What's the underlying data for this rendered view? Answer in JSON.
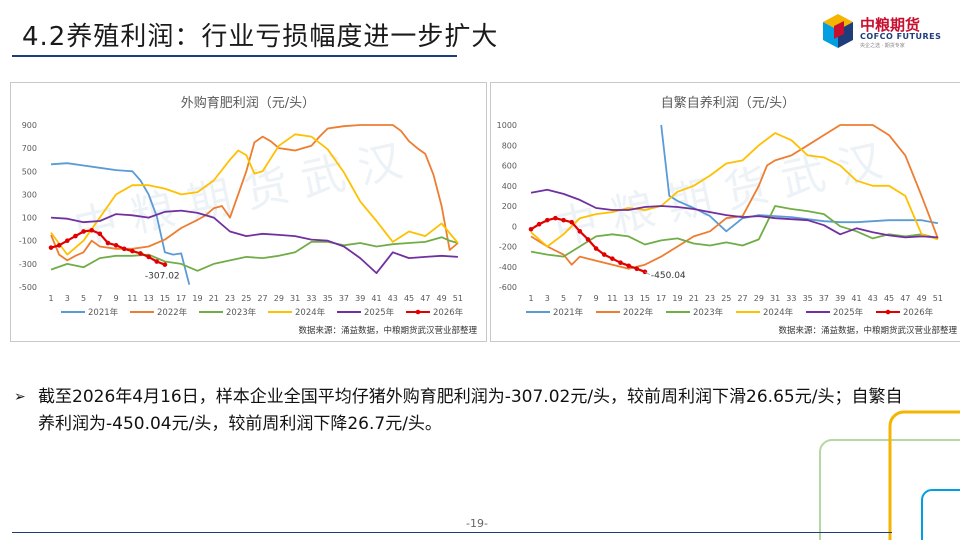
{
  "header": {
    "title": "4.2养殖利润：行业亏损幅度进一步扩大",
    "logo_cn": "中粮期货",
    "logo_en": "COFCO FUTURES",
    "logo_sub": "央企之选 · 期货专家"
  },
  "colors": {
    "2021": "#5b9bd5",
    "2022": "#ed7d31",
    "2023": "#70ad47",
    "2024": "#ffc000",
    "2025": "#7030a0",
    "2026": "#e00000",
    "title_rule": "#1f3d7a",
    "logo_red": "#c8102e"
  },
  "chart_data": [
    {
      "type": "line",
      "title": "外购育肥利润（元/头）",
      "ylim": [
        -500,
        900
      ],
      "yticks": [
        -500,
        -300,
        -100,
        100,
        300,
        500,
        700,
        900
      ],
      "x_ticks": [
        "1",
        "3",
        "5",
        "7",
        "9",
        "11",
        "13",
        "15",
        "17",
        "19",
        "21",
        "23",
        "25",
        "27",
        "29",
        "31",
        "33",
        "35",
        "37",
        "39",
        "41",
        "43",
        "45",
        "47",
        "49",
        "51"
      ],
      "xlim": [
        1,
        52
      ],
      "annotation": {
        "text": "-307.02",
        "x": 15,
        "y": -307.02
      },
      "source": "数据来源：涌益数据，中粮期货武汉营业部整理",
      "watermark": "中粮期货武汉",
      "series": [
        {
          "name": "2021年",
          "x": [
            1,
            3,
            5,
            7,
            9,
            11,
            12,
            13,
            14,
            15,
            16,
            17,
            18
          ],
          "y": [
            560,
            570,
            550,
            530,
            510,
            500,
            420,
            300,
            110,
            -200,
            -220,
            -210,
            -480
          ]
        },
        {
          "name": "2022年",
          "x": [
            1,
            2,
            3,
            4,
            5,
            6,
            7,
            9,
            11,
            13,
            15,
            17,
            19,
            20,
            21,
            22,
            23,
            24,
            25,
            26,
            27,
            28,
            29,
            30,
            31,
            33,
            34,
            35,
            36,
            37,
            39,
            41,
            42,
            43,
            44,
            45,
            46,
            47,
            48,
            49,
            50,
            51
          ],
          "y": [
            -50,
            -220,
            -270,
            -230,
            -200,
            -100,
            -150,
            -170,
            -170,
            -150,
            -90,
            10,
            80,
            120,
            180,
            200,
            100,
            300,
            500,
            750,
            800,
            760,
            700,
            690,
            680,
            720,
            800,
            870,
            880,
            890,
            900,
            900,
            900,
            900,
            850,
            760,
            700,
            650,
            470,
            200,
            -180,
            -120
          ]
        },
        {
          "name": "2023年",
          "x": [
            1,
            3,
            5,
            7,
            9,
            11,
            13,
            15,
            17,
            19,
            21,
            23,
            25,
            27,
            29,
            31,
            33,
            35,
            37,
            39,
            41,
            43,
            45,
            47,
            49,
            50,
            51
          ],
          "y": [
            -350,
            -300,
            -330,
            -250,
            -230,
            -230,
            -220,
            -280,
            -300,
            -360,
            -300,
            -270,
            -240,
            -250,
            -230,
            -200,
            -110,
            -110,
            -140,
            -120,
            -150,
            -130,
            -120,
            -110,
            -70,
            -100,
            -120
          ]
        },
        {
          "name": "2024年",
          "x": [
            1,
            3,
            5,
            7,
            9,
            11,
            13,
            15,
            17,
            19,
            21,
            23,
            24,
            25,
            26,
            27,
            29,
            31,
            33,
            35,
            37,
            39,
            41,
            43,
            45,
            47,
            49,
            51
          ],
          "y": [
            -30,
            -220,
            -100,
            100,
            300,
            380,
            380,
            350,
            300,
            320,
            420,
            600,
            680,
            640,
            480,
            500,
            720,
            820,
            800,
            690,
            490,
            240,
            70,
            -110,
            -20,
            -60,
            50,
            -120
          ]
        },
        {
          "name": "2025年",
          "x": [
            1,
            3,
            5,
            7,
            9,
            11,
            13,
            15,
            17,
            19,
            21,
            23,
            25,
            27,
            29,
            31,
            33,
            35,
            37,
            39,
            41,
            43,
            45,
            47,
            49,
            51
          ],
          "y": [
            100,
            90,
            60,
            70,
            130,
            120,
            100,
            150,
            160,
            140,
            100,
            -20,
            -60,
            -40,
            -50,
            -60,
            -90,
            -100,
            -150,
            -250,
            -380,
            -200,
            -250,
            -240,
            -230,
            -240
          ]
        },
        {
          "name": "2026年",
          "x": [
            1,
            2,
            3,
            4,
            5,
            6,
            7,
            8,
            9,
            10,
            11,
            12,
            13,
            14,
            15
          ],
          "y": [
            -160,
            -140,
            -100,
            -60,
            -20,
            -10,
            -40,
            -120,
            -140,
            -170,
            -190,
            -210,
            -240,
            -280,
            -307.02
          ]
        }
      ]
    },
    {
      "type": "line",
      "title": "自繁自养利润（元/头）",
      "ylim": [
        -600,
        1000
      ],
      "yticks": [
        -600,
        -400,
        -200,
        0,
        200,
        400,
        600,
        800,
        1000
      ],
      "x_ticks": [
        "1",
        "3",
        "5",
        "7",
        "9",
        "11",
        "13",
        "15",
        "17",
        "19",
        "21",
        "23",
        "25",
        "27",
        "29",
        "31",
        "33",
        "35",
        "37",
        "39",
        "41",
        "43",
        "45",
        "47",
        "49",
        "51"
      ],
      "xlim": [
        1,
        52
      ],
      "annotation": {
        "text": "-450.04",
        "x": 15,
        "y": -450.04
      },
      "source": "数据来源：涌益数据，中粮期货武汉营业部整理",
      "watermark": "中粮期货武汉",
      "series": [
        {
          "name": "2021年",
          "x": [
            17,
            18,
            19,
            21,
            23,
            25,
            27,
            29,
            31,
            33,
            35,
            37,
            39,
            41,
            43,
            45,
            47,
            49,
            51
          ],
          "y": [
            1000,
            300,
            250,
            180,
            100,
            -50,
            80,
            110,
            100,
            90,
            70,
            50,
            40,
            40,
            50,
            60,
            60,
            60,
            30
          ]
        },
        {
          "name": "2022年",
          "x": [
            1,
            3,
            5,
            6,
            7,
            9,
            11,
            13,
            15,
            17,
            19,
            21,
            23,
            25,
            27,
            29,
            30,
            31,
            33,
            35,
            37,
            39,
            41,
            43,
            45,
            47,
            49,
            51
          ],
          "y": [
            -100,
            -200,
            -280,
            -380,
            -300,
            -340,
            -380,
            -420,
            -380,
            -300,
            -200,
            -100,
            -50,
            80,
            100,
            400,
            600,
            650,
            700,
            800,
            900,
            1000,
            1000,
            1000,
            900,
            700,
            300,
            -120
          ]
        },
        {
          "name": "2023年",
          "x": [
            1,
            3,
            5,
            7,
            9,
            11,
            13,
            15,
            17,
            19,
            21,
            23,
            25,
            27,
            29,
            31,
            33,
            35,
            37,
            39,
            41,
            43,
            45,
            47,
            49,
            51
          ],
          "y": [
            -250,
            -280,
            -300,
            -200,
            -100,
            -80,
            -100,
            -180,
            -140,
            -120,
            -170,
            -190,
            -160,
            -190,
            -130,
            200,
            170,
            150,
            120,
            0,
            -50,
            -120,
            -80,
            -100,
            -80,
            -120
          ]
        },
        {
          "name": "2024年",
          "x": [
            1,
            3,
            5,
            7,
            9,
            11,
            13,
            15,
            17,
            19,
            21,
            23,
            25,
            27,
            29,
            31,
            33,
            35,
            37,
            39,
            41,
            43,
            45,
            47,
            49,
            51
          ],
          "y": [
            -60,
            -200,
            -80,
            80,
            120,
            140,
            180,
            160,
            200,
            340,
            400,
            500,
            620,
            650,
            800,
            920,
            850,
            700,
            680,
            600,
            450,
            400,
            400,
            300,
            -80,
            -130
          ]
        },
        {
          "name": "2025年",
          "x": [
            1,
            3,
            5,
            7,
            9,
            11,
            13,
            15,
            17,
            19,
            21,
            23,
            25,
            27,
            29,
            31,
            33,
            35,
            37,
            39,
            41,
            43,
            45,
            47,
            49,
            51
          ],
          "y": [
            330,
            360,
            320,
            260,
            180,
            160,
            160,
            190,
            200,
            190,
            170,
            140,
            110,
            90,
            100,
            80,
            70,
            60,
            10,
            -80,
            -20,
            -60,
            -90,
            -110,
            -100,
            -110
          ]
        },
        {
          "name": "2026年",
          "x": [
            1,
            2,
            3,
            4,
            5,
            6,
            7,
            8,
            9,
            10,
            11,
            12,
            13,
            14,
            15
          ],
          "y": [
            -30,
            20,
            60,
            80,
            60,
            40,
            -50,
            -130,
            -220,
            -280,
            -320,
            -360,
            -390,
            -420,
            -450.04
          ]
        }
      ]
    }
  ],
  "text": {
    "bullet": "截至2026年4月16日，样本企业全国平均仔猪外购育肥利润为-307.02元/头，较前周利润下滑26.65元/头；自繁自养利润为-450.04元/头，较前周利润下降26.7元/头。",
    "page_number": "-19-"
  }
}
